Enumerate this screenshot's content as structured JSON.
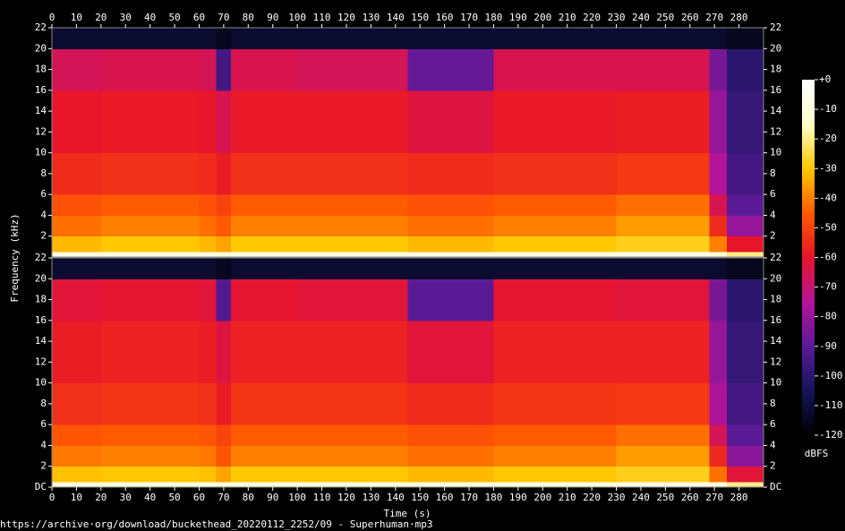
{
  "chart_data": {
    "type": "spectrogram",
    "xlabel": "Time (s)",
    "ylabel": "Frequency (kHz)",
    "colorbar_label": "dBFS",
    "footer": "https://archive·org/download/buckethead_20220112_2252/09 - Superhuman·mp3",
    "xlim": [
      0,
      290
    ],
    "xticks": [
      0,
      10,
      20,
      30,
      40,
      50,
      60,
      70,
      80,
      90,
      100,
      110,
      120,
      130,
      140,
      150,
      160,
      170,
      180,
      190,
      200,
      210,
      220,
      230,
      240,
      250,
      260,
      270,
      280
    ],
    "ylim": [
      0,
      22
    ],
    "clim": [
      -120,
      0
    ],
    "cticks": [
      {
        "value": 0,
        "label": "+0"
      },
      -10,
      -20,
      -30,
      -40,
      -50,
      -60,
      -70,
      -80,
      -90,
      -100,
      -110,
      -120
    ],
    "colormap": [
      "#000000",
      "#14145a",
      "#5a1a96",
      "#b4149a",
      "#e8142a",
      "#ff5a00",
      "#ffc800",
      "#ffffc8",
      "#ffffff"
    ],
    "time_edges": [
      0,
      20,
      40,
      60,
      67,
      73,
      100,
      145,
      180,
      230,
      268,
      275,
      290
    ],
    "freq_edges": [
      0,
      0.5,
      2,
      4,
      6,
      10,
      16,
      20,
      22
    ],
    "channels": [
      {
        "yticks": [
          2,
          4,
          6,
          8,
          10,
          12,
          14,
          16,
          18,
          20,
          22
        ],
        "z": [
          [
            -8,
            -8,
            -8,
            -8,
            -10,
            -8,
            -8,
            -8,
            -8,
            -6,
            -10,
            -20
          ],
          [
            -32,
            -30,
            -30,
            -32,
            -35,
            -30,
            -30,
            -32,
            -30,
            -28,
            -40,
            -60
          ],
          [
            -42,
            -40,
            -40,
            -42,
            -45,
            -40,
            -40,
            -42,
            -40,
            -36,
            -55,
            -80
          ],
          [
            -47,
            -45,
            -45,
            -47,
            -50,
            -45,
            -45,
            -47,
            -45,
            -42,
            -65,
            -90
          ],
          [
            -55,
            -54,
            -54,
            -55,
            -58,
            -54,
            -54,
            -55,
            -54,
            -52,
            -75,
            -95
          ],
          [
            -60,
            -59,
            -59,
            -60,
            -65,
            -59,
            -59,
            -63,
            -59,
            -58,
            -80,
            -98
          ],
          [
            -66,
            -65,
            -65,
            -66,
            -95,
            -65,
            -66,
            -88,
            -65,
            -65,
            -85,
            -100
          ],
          [
            -112,
            -112,
            -112,
            -112,
            -115,
            -112,
            -112,
            -112,
            -112,
            -112,
            -112,
            -115
          ]
        ]
      },
      {
        "yticks": [
          {
            "value": 0,
            "label": "DC"
          },
          2,
          4,
          6,
          8,
          10,
          12,
          14,
          16,
          18,
          20,
          22
        ],
        "z": [
          [
            -8,
            -8,
            -8,
            -8,
            -10,
            -8,
            -8,
            -8,
            -8,
            -6,
            -10,
            -20
          ],
          [
            -31,
            -30,
            -30,
            -31,
            -35,
            -30,
            -30,
            -32,
            -30,
            -28,
            -42,
            -62
          ],
          [
            -41,
            -40,
            -40,
            -41,
            -46,
            -40,
            -40,
            -42,
            -40,
            -36,
            -56,
            -82
          ],
          [
            -46,
            -45,
            -45,
            -46,
            -50,
            -45,
            -45,
            -47,
            -45,
            -42,
            -66,
            -90
          ],
          [
            -54,
            -53,
            -53,
            -54,
            -58,
            -53,
            -53,
            -55,
            -53,
            -52,
            -76,
            -95
          ],
          [
            -58,
            -57,
            -57,
            -58,
            -63,
            -57,
            -57,
            -62,
            -57,
            -57,
            -80,
            -98
          ],
          [
            -62,
            -61,
            -61,
            -62,
            -92,
            -61,
            -62,
            -90,
            -61,
            -62,
            -85,
            -100
          ],
          [
            -112,
            -112,
            -112,
            -112,
            -115,
            -112,
            -112,
            -112,
            -112,
            -112,
            -112,
            -115
          ]
        ]
      }
    ]
  }
}
